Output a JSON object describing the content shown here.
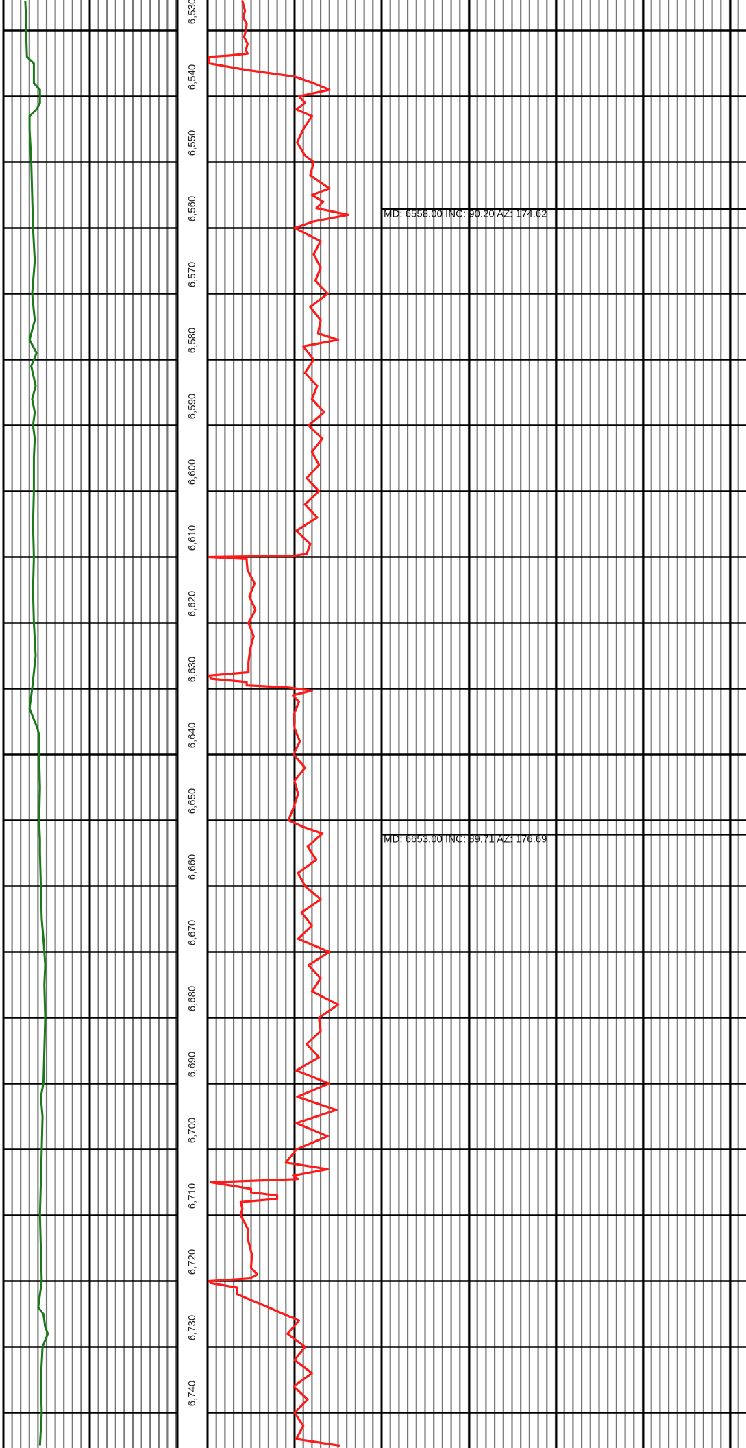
{
  "chart_data": {
    "type": "line",
    "title": "",
    "orientation": "vertical-depth-log",
    "depth_axis": {
      "label": "",
      "range": [
        6525.5,
        6745
      ],
      "tick_step": 10,
      "ticks": [
        6530,
        6540,
        6550,
        6560,
        6570,
        6580,
        6590,
        6600,
        6610,
        6620,
        6630,
        6640,
        6650,
        6660,
        6670,
        6680,
        6690,
        6700,
        6710,
        6720,
        6730,
        6740
      ],
      "tick_labels": [
        "6,530",
        "6,540",
        "6,550",
        "6,560",
        "6,570",
        "6,580",
        "6,590",
        "6,600",
        "6,610",
        "6,620",
        "6,630",
        "6,640",
        "6,650",
        "6,660",
        "6,670",
        "6,680",
        "6,690",
        "6,700",
        "6,710",
        "6,720",
        "6,730",
        "6,740"
      ]
    },
    "grid": true,
    "colors": {
      "green_curve": "#1a7a1a",
      "red_curve": "#ff1a1a",
      "major_grid": "#000000",
      "minor_grid": "#777777",
      "background": "#ffffff"
    },
    "series": [
      {
        "track": 1,
        "color": "#1a7a1a",
        "depth": [
          6525.5,
          6528,
          6530,
          6534,
          6535,
          6538,
          6539,
          6541,
          6542,
          6543,
          6545,
          6550,
          6555,
          6560,
          6565,
          6570,
          6574,
          6577,
          6579,
          6581,
          6584,
          6586,
          6588,
          6590,
          6592,
          6595,
          6600,
          6605,
          6610,
          6615,
          6620,
          6625,
          6630,
          6633,
          6634,
          6636,
          6637,
          6640,
          6645,
          6650,
          6653,
          6655,
          6660,
          6665,
          6668,
          6670,
          6672,
          6675,
          6680,
          6685,
          6690,
          6692,
          6695,
          6700,
          6705,
          6710,
          6715,
          6720,
          6724,
          6725,
          6727,
          6728,
          6730,
          6735,
          6740,
          6745
        ],
        "values": [
          0.25,
          0.26,
          0.26,
          0.27,
          0.35,
          0.35,
          0.42,
          0.42,
          0.38,
          0.3,
          0.3,
          0.32,
          0.33,
          0.34,
          0.36,
          0.33,
          0.36,
          0.3,
          0.38,
          0.32,
          0.37,
          0.33,
          0.36,
          0.34,
          0.36,
          0.35,
          0.35,
          0.34,
          0.35,
          0.34,
          0.35,
          0.37,
          0.33,
          0.3,
          0.33,
          0.39,
          0.41,
          0.41,
          0.42,
          0.41,
          0.42,
          0.42,
          0.43,
          0.44,
          0.46,
          0.47,
          0.48,
          0.47,
          0.48,
          0.47,
          0.46,
          0.43,
          0.45,
          0.44,
          0.43,
          0.42,
          0.43,
          0.44,
          0.4,
          0.46,
          0.48,
          0.51,
          0.45,
          0.43,
          0.44,
          0.42
        ]
      },
      {
        "track": 2,
        "color": "#ff1a1a",
        "depth": [
          6525.5,
          6527,
          6528,
          6529,
          6530,
          6531,
          6532,
          6533,
          6533.5,
          6533.8,
          6534,
          6534.5,
          6535,
          6536,
          6537,
          6538,
          6539,
          6540,
          6541,
          6542,
          6543,
          6545,
          6547,
          6549,
          6550,
          6552,
          6554,
          6555,
          6556,
          6557,
          6558,
          6559,
          6560,
          6562,
          6564,
          6566,
          6568,
          6570,
          6572,
          6574,
          6576,
          6577,
          6578,
          6580,
          6582,
          6584,
          6586,
          6588,
          6590,
          6592,
          6594,
          6596,
          6598,
          6600,
          6602,
          6604,
          6606,
          6608,
          6609.5,
          6609.8,
          6610,
          6610.3,
          6610.6,
          6612,
          6614,
          6616,
          6618,
          6620,
          6622,
          6624,
          6626,
          6627.5,
          6628,
          6628.5,
          6629,
          6629.5,
          6629.8,
          6630,
          6630.3,
          6631,
          6632,
          6634,
          6636,
          6638,
          6640,
          6642,
          6644,
          6646,
          6648,
          6650,
          6651,
          6652,
          6654,
          6656,
          6658,
          6660,
          6662,
          6664,
          6666,
          6668,
          6670,
          6672,
          6674,
          6676,
          6678,
          6680,
          6682,
          6684,
          6686,
          6688,
          6690,
          6692,
          6694,
          6696,
          6698,
          6700,
          6702,
          6703,
          6704,
          6704.5,
          6705,
          6706,
          6706.5,
          6707,
          6707.5,
          6708,
          6709,
          6710,
          6712,
          6714,
          6716,
          6718,
          6719,
          6719.3,
          6719.6,
          6720,
          6720.3,
          6721,
          6722,
          6724,
          6726,
          6728,
          6730,
          6732,
          6734,
          6736,
          6738,
          6740,
          6742,
          6744,
          6745
        ],
        "values": [
          0.4,
          0.43,
          0.41,
          0.45,
          0.44,
          0.42,
          0.46,
          0.44,
          0.46,
          0.25,
          0.02,
          0.01,
          0.02,
          0.45,
          1.0,
          1.22,
          1.4,
          1.05,
          1.12,
          1.02,
          1.2,
          1.1,
          1.03,
          1.12,
          1.22,
          1.18,
          1.4,
          1.2,
          1.33,
          1.25,
          1.62,
          1.22,
          1.0,
          1.3,
          1.22,
          1.3,
          1.24,
          1.38,
          1.18,
          1.3,
          1.27,
          1.5,
          1.1,
          1.22,
          1.12,
          1.26,
          1.2,
          1.34,
          1.16,
          1.32,
          1.2,
          1.28,
          1.14,
          1.28,
          1.12,
          1.26,
          1.02,
          1.18,
          1.14,
          1.0,
          0.02,
          0.45,
          0.45,
          0.46,
          0.54,
          0.48,
          0.55,
          0.47,
          0.53,
          0.49,
          0.47,
          0.47,
          0.02,
          0.04,
          0.45,
          0.45,
          0.92,
          1.03,
          1.2,
          0.98,
          1.05,
          0.99,
          1.0,
          1.06,
          0.99,
          1.12,
          1.0,
          1.04,
          0.99,
          0.93,
          1.1,
          1.32,
          1.15,
          1.25,
          1.04,
          1.12,
          1.3,
          1.08,
          1.2,
          1.04,
          1.4,
          1.16,
          1.3,
          1.2,
          1.5,
          1.28,
          1.3,
          1.14,
          1.28,
          1.02,
          1.4,
          1.03,
          1.48,
          1.02,
          1.38,
          1.02,
          0.9,
          1.38,
          0.98,
          1.04,
          0.04,
          0.5,
          0.5,
          0.8,
          0.8,
          0.38,
          0.4,
          0.38,
          0.46,
          0.47,
          0.51,
          0.5,
          0.57,
          0.53,
          0.48,
          0.02,
          0.04,
          0.34,
          0.34,
          0.7,
          1.05,
          0.92,
          1.12,
          1.0,
          1.2,
          0.99,
          1.15,
          1.0,
          1.1,
          1.02,
          1.52,
          1.0,
          1.13,
          1.0
        ]
      }
    ],
    "annotations": [
      {
        "depth": 6558,
        "text": "MD: 6558.00 INC: 90.20 AZ: 174.62"
      },
      {
        "depth": 6653,
        "text": "MD: 6653.00 INC: 89.71 AZ: 176.69"
      }
    ]
  }
}
